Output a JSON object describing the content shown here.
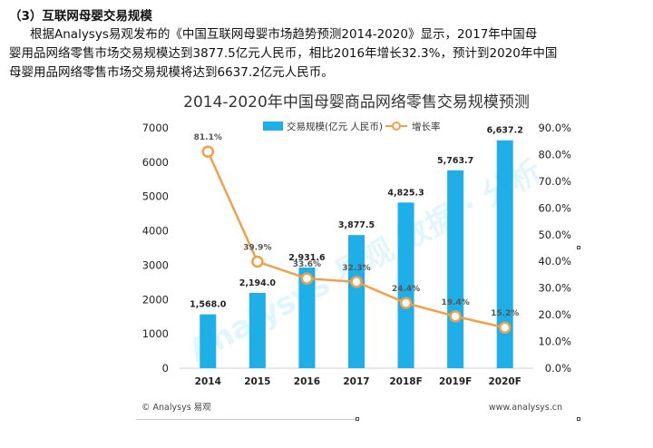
{
  "document": {
    "heading": "（3）互联网母婴交易规模",
    "paragraph": [
      "根据Analysys易观发布的《中国互联网母婴市场趋势预测2014-2020》显示，2017年中国母",
      "婴用品网络零售市场交易规模达到3877.5亿元人民币，相比2016年增长32.3%，预计到2020年中国",
      "母婴用品网络零售市场交易规模将达到6637.2亿元人民币。"
    ]
  },
  "chart_data": {
    "type": "bar",
    "title": "2014-2020年中国母婴商品网络零售交易规模预测",
    "categories": [
      "2014",
      "2015",
      "2016",
      "2017",
      "2018F",
      "2019F",
      "2020F"
    ],
    "series": [
      {
        "name": "交易规模(亿元 人民币)",
        "type": "bar",
        "axis": "left",
        "color": "#1eaee8",
        "values": [
          1568.0,
          2194.0,
          2931.6,
          3877.5,
          4825.3,
          5763.7,
          6637.2
        ],
        "labels": [
          "1,568.0",
          "2,194.0",
          "2,931.6",
          "3,877.5",
          "4,825.3",
          "5,763.7",
          "6,637.2"
        ]
      },
      {
        "name": "增长率",
        "type": "line",
        "axis": "right",
        "color": "#f0a04a",
        "values": [
          81.1,
          39.9,
          33.6,
          32.3,
          24.4,
          19.4,
          15.2
        ],
        "labels": [
          "81.1%",
          "39.9%",
          "33.6%",
          "32.3%",
          "24.4%",
          "19.4%",
          "15.2%"
        ]
      }
    ],
    "y_left": {
      "min": 0,
      "max": 7000,
      "step": 1000,
      "ticks": [
        "0",
        "1000",
        "2000",
        "3000",
        "4000",
        "5000",
        "6000",
        "7000"
      ]
    },
    "y_right": {
      "min": 0,
      "max": 90,
      "step": 10,
      "ticks": [
        "0.0%",
        "10.0%",
        "20.0%",
        "30.0%",
        "40.0%",
        "50.0%",
        "60.0%",
        "70.0%",
        "80.0%",
        "90.0%"
      ]
    },
    "legend_position": "top-center",
    "source": "© Analysys 易观",
    "website": "www.analysys.cn",
    "watermark": "Analysys 易观 数据 · 分析"
  }
}
